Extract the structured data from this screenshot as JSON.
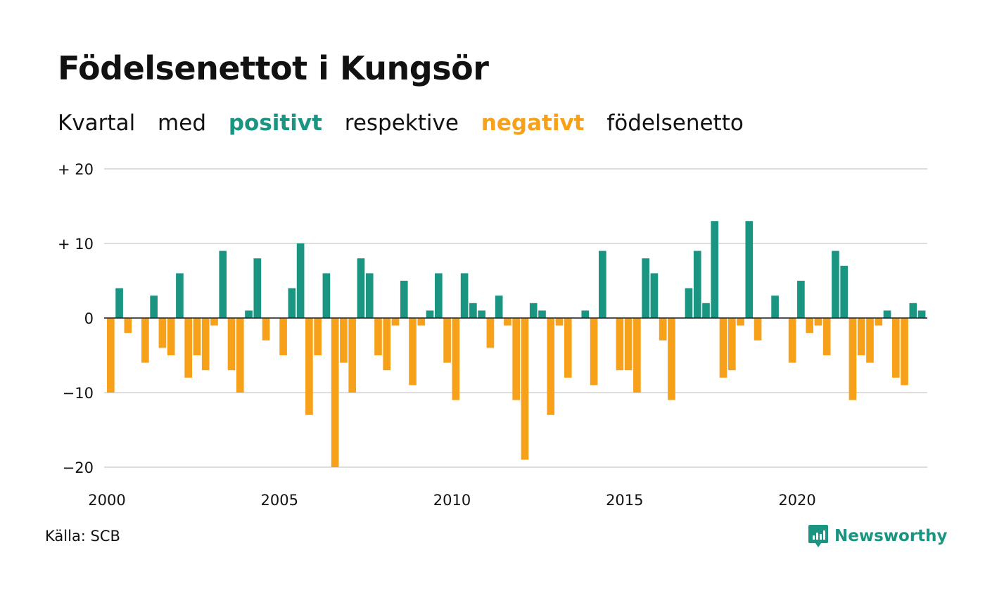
{
  "title": "Födelsenettot i Kungsör",
  "subtitle": {
    "part1": "Kvartal",
    "part2": "med",
    "positive": "positivt",
    "part3": "respektive",
    "negative": "negativt",
    "part4": "födelsenetto"
  },
  "colors": {
    "positive": "#1a9582",
    "negative": "#f7a11a",
    "grid": "#dddddd",
    "text": "#111111"
  },
  "source": "Källa: SCB",
  "brand": "Newsworthy",
  "logo_icon": "newsworthy-logo-icon",
  "chart_data": {
    "type": "bar",
    "x_start": "2000-Q1",
    "frequency": "quarterly",
    "values": [
      -10,
      4,
      -2,
      0,
      -6,
      3,
      -4,
      -5,
      6,
      -8,
      -5,
      -7,
      -1,
      9,
      -7,
      -10,
      1,
      8,
      -3,
      0,
      -5,
      4,
      10,
      -13,
      -5,
      6,
      -20,
      -6,
      -10,
      8,
      6,
      -5,
      -7,
      -1,
      5,
      -9,
      -1,
      1,
      6,
      -6,
      -11,
      6,
      2,
      1,
      -4,
      3,
      -1,
      -11,
      -19,
      2,
      1,
      -13,
      -1,
      -8,
      0,
      1,
      -9,
      9,
      0,
      -7,
      -7,
      -10,
      8,
      6,
      -3,
      -11,
      0,
      4,
      9,
      2,
      13,
      -8,
      -7,
      -1,
      13,
      -3,
      0,
      3,
      0,
      -6,
      5,
      -2,
      -1,
      -5,
      9,
      7,
      -11,
      -5,
      -6,
      -1,
      1,
      -8,
      -9,
      2,
      1
    ],
    "ylim": [
      -20,
      20
    ],
    "yticks": [
      {
        "value": 20,
        "label": "+ 20"
      },
      {
        "value": 10,
        "label": "+ 10"
      },
      {
        "value": 0,
        "label": "0"
      },
      {
        "value": -10,
        "label": "−10"
      },
      {
        "value": -20,
        "label": "−20"
      }
    ],
    "xticks": [
      {
        "year": 2000,
        "label": "2000"
      },
      {
        "year": 2005,
        "label": "2005"
      },
      {
        "year": 2010,
        "label": "2010"
      },
      {
        "year": 2015,
        "label": "2015"
      },
      {
        "year": 2020,
        "label": "2020"
      }
    ],
    "grid": true,
    "legend": "in-subtitle"
  }
}
